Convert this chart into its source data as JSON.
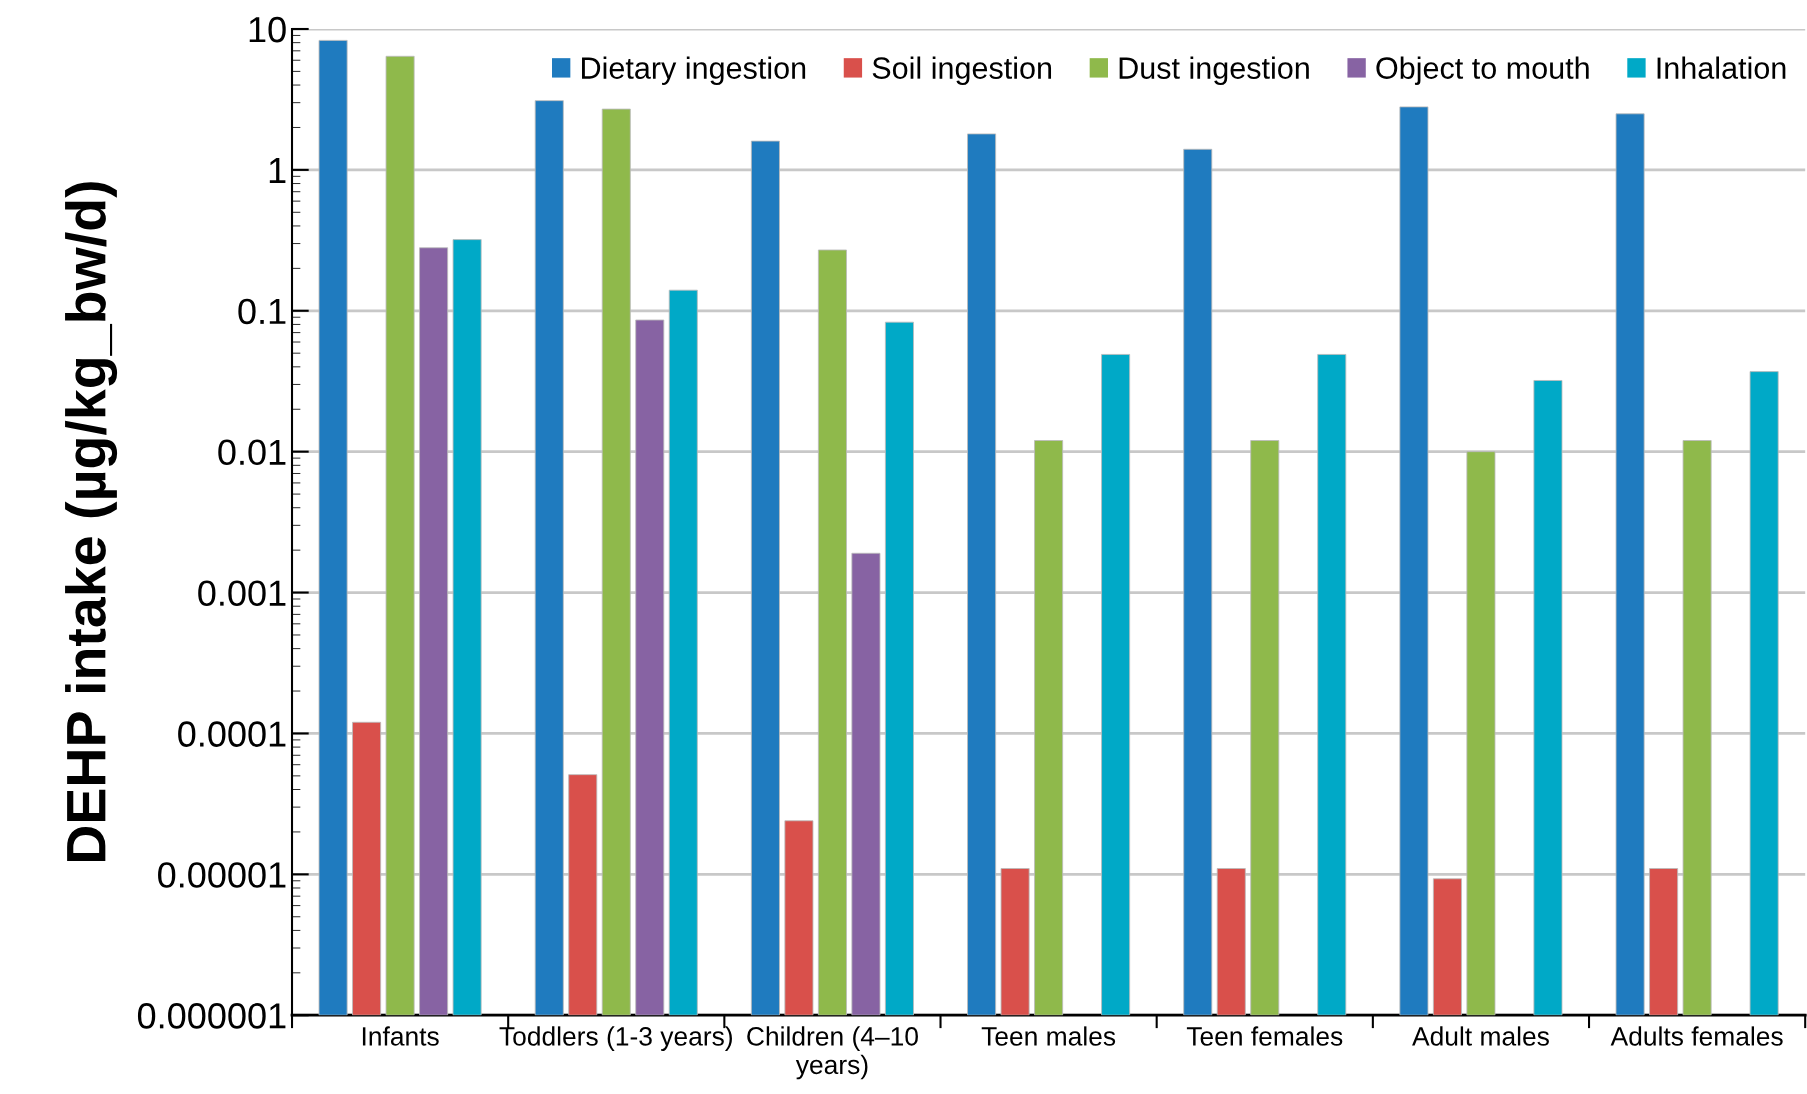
{
  "chart_data": {
    "type": "bar",
    "ylabel": "DEHP intake (µg/kg_bw/d)",
    "categories": [
      "Infants",
      "Toddlers (1-3 years)",
      "Children (4–10\nyears)",
      "Teen males",
      "Teen females",
      "Adult males",
      "Adults females"
    ],
    "series": [
      {
        "name": "Dietary ingestion",
        "color": "#1f7bbf",
        "values": [
          8.3,
          3.1,
          1.6,
          1.8,
          1.4,
          2.8,
          2.5
        ]
      },
      {
        "name": "Soil ingestion",
        "color": "#d9504b",
        "values": [
          0.00012,
          5.1e-05,
          2.4e-05,
          1.1e-05,
          1.1e-05,
          9.3e-06,
          1.1e-05
        ]
      },
      {
        "name": "Dust ingestion",
        "color": "#8fb94b",
        "values": [
          6.4,
          2.7,
          0.27,
          0.012,
          0.012,
          0.01,
          0.012
        ]
      },
      {
        "name": "Object to mouth",
        "color": "#8763a3",
        "values": [
          0.28,
          0.086,
          0.0019,
          null,
          null,
          null,
          null
        ]
      },
      {
        "name": "Inhalation",
        "color": "#00a9c7",
        "values": [
          0.32,
          0.14,
          0.083,
          0.049,
          0.049,
          0.032,
          0.037
        ]
      }
    ],
    "log": "y",
    "ylim": [
      1e-06,
      10
    ],
    "yticks": [
      {
        "value": 1e-06,
        "label": "0.000001"
      },
      {
        "value": 1e-05,
        "label": "0.00001"
      },
      {
        "value": 0.0001,
        "label": "0.0001"
      },
      {
        "value": 0.001,
        "label": "0.001"
      },
      {
        "value": 0.01,
        "label": "0.01"
      },
      {
        "value": 0.1,
        "label": "0.1"
      },
      {
        "value": 1,
        "label": "1"
      },
      {
        "value": 10,
        "label": "10"
      }
    ],
    "grid": "y",
    "legend": "top"
  }
}
